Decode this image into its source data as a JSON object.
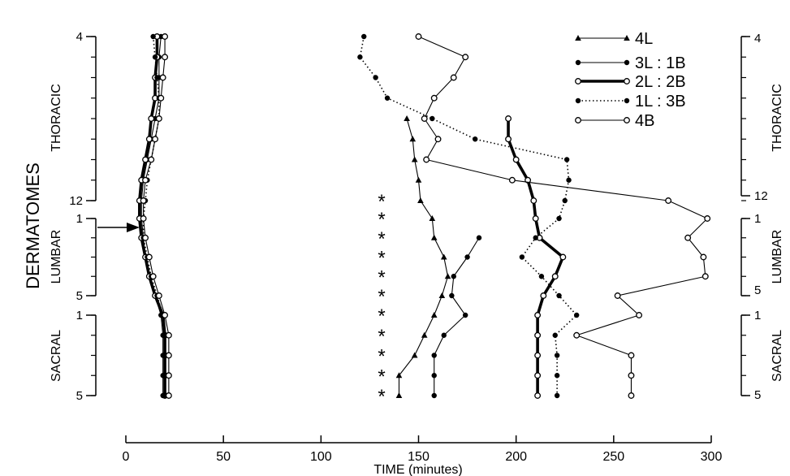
{
  "chart_data": {
    "type": "line",
    "xlabel": "TIME (minutes)",
    "ylabel": "DERMATOMES",
    "x_ticks": [
      "0",
      "50",
      "100",
      "150",
      "200",
      "250",
      "300"
    ],
    "xlim": [
      0,
      300
    ],
    "grid": false,
    "legend_position": "top-right",
    "y_segments": [
      {
        "name": "THORACIC",
        "start": "4",
        "end": "12"
      },
      {
        "name": "LUMBAR",
        "start": "1",
        "end": "5"
      },
      {
        "name": "SACRAL",
        "start": "1",
        "end": "5"
      }
    ],
    "levels": [
      "T4",
      "T5",
      "T6",
      "T7",
      "T8",
      "T9",
      "T10",
      "T11",
      "T12",
      "L1",
      "L2",
      "L3",
      "L4",
      "L5",
      "S1",
      "S2",
      "S3",
      "S4",
      "S5"
    ],
    "significance_marker": "*",
    "significance_levels": [
      "T12",
      "L1",
      "L2",
      "L3",
      "L4",
      "L5",
      "S1",
      "S2",
      "S3",
      "S4",
      "S5"
    ],
    "series": [
      {
        "name": "4L",
        "legend_label": "4L",
        "marker": "triangle",
        "style": "solid",
        "stroke": "thin",
        "onset": [
          null,
          null,
          null,
          null,
          null,
          null,
          null,
          null,
          null,
          null,
          null,
          null,
          null,
          null,
          null,
          null,
          null,
          null,
          null
        ],
        "regression": [
          null,
          null,
          null,
          null,
          null,
          null,
          null,
          null,
          null,
          null,
          null,
          null,
          null,
          null,
          null,
          null,
          null,
          null,
          null
        ],
        "values": [
          null,
          null,
          null,
          null,
          144,
          147,
          148,
          150,
          151,
          157,
          158,
          163,
          165,
          162,
          158,
          153,
          148,
          140,
          140
        ]
      },
      {
        "name": "3L: 1B",
        "legend_label": "3L : 1B",
        "marker": "filled-circle",
        "style": "solid",
        "stroke": "thin",
        "onset": [
          18,
          17,
          17,
          17,
          15,
          13,
          11,
          9,
          8,
          8,
          9,
          10,
          12,
          15,
          18,
          19,
          19,
          19,
          19
        ],
        "values": [
          null,
          null,
          null,
          null,
          null,
          null,
          null,
          null,
          null,
          null,
          181,
          175,
          168,
          167,
          174,
          163,
          158,
          158,
          158
        ]
      },
      {
        "name": "2L: 2B",
        "legend_label": "2L : 2B",
        "marker": "open-circle",
        "style": "solid",
        "stroke": "thick",
        "onset": [
          16,
          16,
          15,
          15,
          13,
          12,
          10,
          8,
          7,
          7,
          8,
          10,
          12,
          15,
          19,
          20,
          20,
          20,
          20
        ],
        "values": [
          null,
          null,
          null,
          null,
          196,
          196,
          200,
          206,
          209,
          210,
          212,
          224,
          220,
          214,
          211,
          211,
          211,
          211,
          211
        ]
      },
      {
        "name": "1L: 3B",
        "legend_label": "1L : 3B",
        "marker": "filled-circle",
        "style": "dotted",
        "stroke": "medium",
        "onset": [
          14,
          15,
          16,
          17,
          17,
          15,
          13,
          11,
          10,
          9,
          9,
          11,
          13,
          16,
          19,
          20,
          20,
          20,
          20
        ],
        "values": [
          122,
          120,
          128,
          134,
          157,
          179,
          226,
          227,
          225,
          222,
          210,
          203,
          213,
          222,
          231,
          220,
          221,
          221,
          221
        ]
      },
      {
        "name": "4B",
        "legend_label": "4B",
        "marker": "open-circle",
        "style": "solid",
        "stroke": "thin",
        "onset": [
          20,
          20,
          19,
          18,
          17,
          15,
          13,
          10,
          9,
          9,
          10,
          12,
          14,
          17,
          20,
          22,
          22,
          22,
          22
        ],
        "values": [
          150,
          174,
          168,
          158,
          153,
          160,
          154,
          198,
          278,
          298,
          288,
          296,
          297,
          252,
          263,
          231,
          259,
          259,
          259
        ]
      }
    ]
  }
}
